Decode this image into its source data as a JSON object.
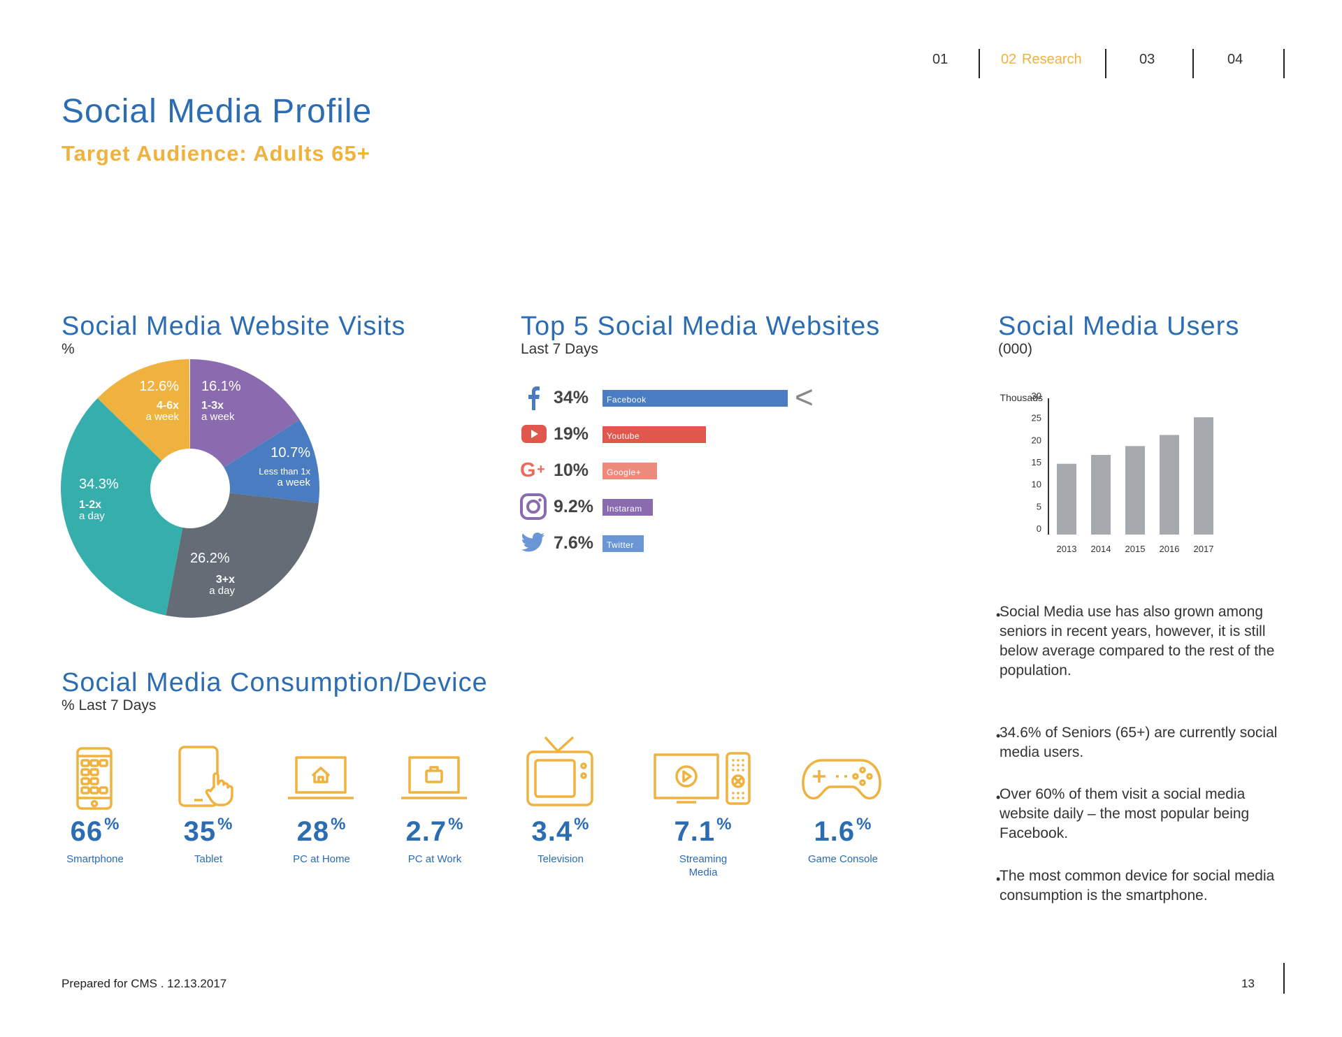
{
  "nav": {
    "items": [
      "01",
      "02",
      "Research",
      "03",
      "04"
    ]
  },
  "header": {
    "title": "Social Media Profile",
    "subtitle": "Target Audience: Adults 65+"
  },
  "visits": {
    "title": "Social Media Website Visits",
    "unit": "%",
    "slices": [
      {
        "pct": "16.1%",
        "line1": "1-3x",
        "line2": "a week",
        "color": "#8a6bb0"
      },
      {
        "pct": "10.7%",
        "line1": "Less than 1x",
        "line2": "a week",
        "color": "#4a7cc2"
      },
      {
        "pct": "26.2%",
        "line1": "3+x",
        "line2": "a day",
        "color": "#646c76"
      },
      {
        "pct": "34.3%",
        "line1": "1-2x",
        "line2": "a day",
        "color": "#35aeac"
      },
      {
        "pct": "12.6%",
        "line1": "4-6x",
        "line2": "a week",
        "color": "#f0b23e"
      }
    ]
  },
  "top5": {
    "title": "Top 5 Social Media Websites",
    "subtitle": "Last 7 Days",
    "arrow": "<",
    "sites": [
      {
        "pct": "34%",
        "label": "Facebook",
        "value": 34,
        "color": "#4a7cc2",
        "icon": "facebook-icon"
      },
      {
        "pct": "19%",
        "label": "Youtube",
        "value": 19,
        "color": "#e0584d",
        "icon": "youtube-icon"
      },
      {
        "pct": "10%",
        "label": "Google+",
        "value": 10,
        "color": "#ec8a7c",
        "icon": "google-plus-icon"
      },
      {
        "pct": "9.2%",
        "label": "Instaram",
        "value": 9.2,
        "color": "#8a6bb0",
        "icon": "instagram-icon"
      },
      {
        "pct": "7.6%",
        "label": "Twitter",
        "value": 7.6,
        "color": "#6a96d6",
        "icon": "twitter-icon"
      }
    ]
  },
  "users": {
    "title": "Social Media Users",
    "subtitle": "(000)"
  },
  "chart_data": {
    "type": "bar",
    "ylabel": "Thousads",
    "categories": [
      "2013",
      "2014",
      "2015",
      "2016",
      "2017"
    ],
    "values": [
      16,
      18,
      20,
      22.5,
      26.5
    ],
    "ylim": [
      0,
      30
    ],
    "yticks": [
      "30",
      "25",
      "20",
      "15",
      "10",
      "5",
      "0"
    ],
    "grid": false,
    "bar_color": "#a6a9ad"
  },
  "bullets": [
    "Social Media use has also grown among seniors in recent years, however, it is still below average compared to the rest of the population.",
    "34.6% of Seniors (65+) are currently social media users.",
    "Over 60% of them visit a social media website daily – the most popular being Facebook.",
    "The most common device for social media consumption is the smartphone."
  ],
  "devices": {
    "title": "Social Media Consumption/Device",
    "subtitle": "% Last 7 Days",
    "items": [
      {
        "value": "66",
        "sup": "%",
        "label": "Smartphone",
        "icon": "smartphone-icon"
      },
      {
        "value": "35",
        "sup": "%",
        "label": "Tablet",
        "icon": "tablet-icon"
      },
      {
        "value": "28",
        "sup": "%",
        "label": "PC at Home",
        "icon": "pc-home-icon"
      },
      {
        "value": "2.7",
        "sup": "%",
        "label": "PC at Work",
        "icon": "pc-work-icon"
      },
      {
        "value": "3.4",
        "sup": "%",
        "label": "Television",
        "icon": "television-icon"
      },
      {
        "value": "7.1",
        "sup": "%",
        "label": "Streaming Media",
        "icon": "streaming-media-icon"
      },
      {
        "value": "1.6",
        "sup": "%",
        "label": "Game Console",
        "icon": "game-console-icon"
      }
    ],
    "icon_color": "#f0b23e"
  },
  "footer": {
    "prepared": "Prepared for CMS . 12.13.2017",
    "page": "13"
  }
}
